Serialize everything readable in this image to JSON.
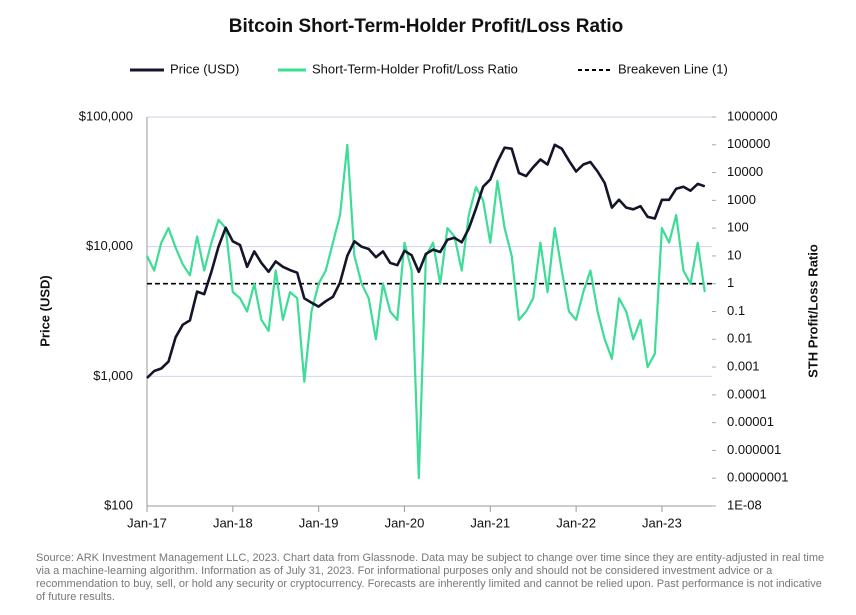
{
  "chart_data": {
    "type": "line",
    "title": "Bitcoin Short-Term-Holder Profit/Loss Ratio",
    "ylabel": "Price (USD)",
    "y2label": "STH Profit/Loss Ratio",
    "log_y": true,
    "log_y2": true,
    "grid": true,
    "legend": "top",
    "x": [
      "2017-01",
      "2017-02",
      "2017-03",
      "2017-04",
      "2017-05",
      "2017-06",
      "2017-07",
      "2017-08",
      "2017-09",
      "2017-10",
      "2017-11",
      "2017-12",
      "2018-01",
      "2018-02",
      "2018-03",
      "2018-04",
      "2018-05",
      "2018-06",
      "2018-07",
      "2018-08",
      "2018-09",
      "2018-10",
      "2018-11",
      "2018-12",
      "2019-01",
      "2019-02",
      "2019-03",
      "2019-04",
      "2019-05",
      "2019-06",
      "2019-07",
      "2019-08",
      "2019-09",
      "2019-10",
      "2019-11",
      "2019-12",
      "2020-01",
      "2020-02",
      "2020-03",
      "2020-04",
      "2020-05",
      "2020-06",
      "2020-07",
      "2020-08",
      "2020-09",
      "2020-10",
      "2020-11",
      "2020-12",
      "2021-01",
      "2021-02",
      "2021-03",
      "2021-04",
      "2021-05",
      "2021-06",
      "2021-07",
      "2021-08",
      "2021-09",
      "2021-10",
      "2021-11",
      "2021-12",
      "2022-01",
      "2022-02",
      "2022-03",
      "2022-04",
      "2022-05",
      "2022-06",
      "2022-07",
      "2022-08",
      "2022-09",
      "2022-10",
      "2022-11",
      "2022-12",
      "2023-01",
      "2023-02",
      "2023-03",
      "2023-04",
      "2023-05",
      "2023-06",
      "2023-07"
    ],
    "xlim": [
      "2017-01",
      "2023-08"
    ],
    "xticks": [
      {
        "value": "2017-01",
        "label": "Jan-17"
      },
      {
        "value": "2018-01",
        "label": "Jan-18"
      },
      {
        "value": "2019-01",
        "label": "Jan-19"
      },
      {
        "value": "2020-01",
        "label": "Jan-20"
      },
      {
        "value": "2021-01",
        "label": "Jan-21"
      },
      {
        "value": "2022-01",
        "label": "Jan-22"
      },
      {
        "value": "2023-01",
        "label": "Jan-23"
      }
    ],
    "ylim": [
      100,
      100000
    ],
    "yticks": [
      {
        "value": 100,
        "label": "$100"
      },
      {
        "value": 1000,
        "label": "$1,000"
      },
      {
        "value": 10000,
        "label": "$10,000"
      },
      {
        "value": 100000,
        "label": "$100,000"
      }
    ],
    "y2lim": [
      1e-08,
      1000000
    ],
    "y2ticks": [
      {
        "value": 1e-08,
        "label": "1E-08"
      },
      {
        "value": 1e-07,
        "label": "0.0000001"
      },
      1e-06,
      1e-05,
      0.0001,
      0.001,
      0.01,
      0.1,
      1,
      10,
      100,
      1000,
      10000,
      100000,
      1000000
    ],
    "series": [
      {
        "name": "Price (USD)",
        "color": "#14142b",
        "values": [
          970,
          1100,
          1150,
          1300,
          2000,
          2500,
          2700,
          4500,
          4300,
          6400,
          10000,
          14000,
          11000,
          10300,
          7000,
          9200,
          7500,
          6400,
          7700,
          7000,
          6600,
          6300,
          4000,
          3700,
          3450,
          3800,
          4100,
          5300,
          8500,
          11000,
          10000,
          9600,
          8300,
          9200,
          7500,
          7200,
          9300,
          8600,
          6400,
          8800,
          9500,
          9100,
          11300,
          11700,
          10800,
          13800,
          19700,
          29000,
          33000,
          45000,
          58000,
          57000,
          37000,
          35000,
          41000,
          47000,
          43000,
          61000,
          57000,
          46000,
          38000,
          43000,
          45000,
          38000,
          31000,
          20000,
          23000,
          20000,
          19400,
          20500,
          17000,
          16500,
          23000,
          23000,
          28000,
          29000,
          27000,
          30500,
          29200
        ]
      },
      {
        "name": "Short-Term-Holder Profit/Loss Ratio",
        "color": "#3ddc97",
        "axis": "y2",
        "values": [
          10,
          3,
          30,
          100,
          20,
          5,
          2,
          50,
          3,
          30,
          200,
          100,
          0.5,
          0.3,
          0.1,
          1,
          0.05,
          0.02,
          3,
          0.05,
          0.5,
          0.3,
          0.0003,
          0.1,
          1,
          3,
          30,
          300,
          100000,
          10,
          1,
          0.3,
          0.01,
          1,
          0.1,
          0.05,
          30,
          3,
          1e-07,
          10,
          30,
          1,
          100,
          50,
          3,
          300,
          3000,
          1000,
          30,
          5000,
          100,
          10,
          0.05,
          0.1,
          0.3,
          30,
          0.5,
          100,
          3,
          0.1,
          0.05,
          0.5,
          3,
          0.1,
          0.01,
          0.002,
          0.3,
          0.1,
          0.01,
          0.05,
          0.001,
          0.003,
          100,
          30,
          300,
          3,
          1,
          30,
          0.5
        ]
      }
    ],
    "breakeven": {
      "name": "Breakeven Line (1)",
      "value": 1,
      "axis": "y2",
      "color": "#000000"
    },
    "source": "Source: ARK Investment Management LLC, 2023. Chart data from Glassnode. Data may be subject to change over time since they are entity-adjusted in real time via a machine-learning algorithm. Information as of July 31, 2023. For informational purposes only and should not be considered investment advice or a recommendation to buy, sell, or hold any security or cryptocurrency. Forecasts are inherently limited and cannot be relied upon. Past performance is not indicative of future results."
  }
}
